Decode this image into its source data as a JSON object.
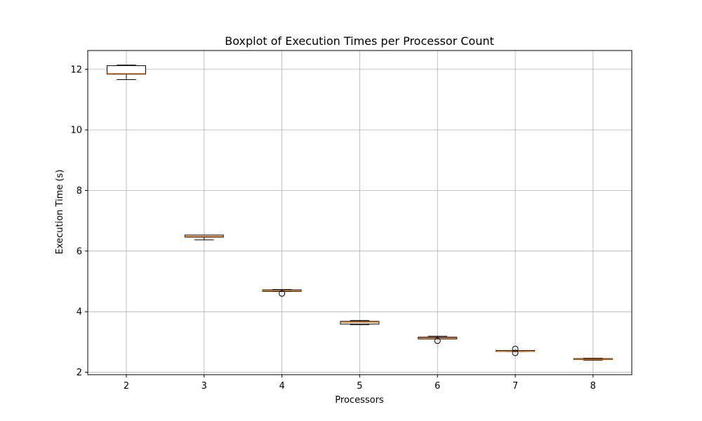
{
  "chart_data": {
    "type": "boxplot",
    "title": "Boxplot of Execution Times per Processor Count",
    "xlabel": "Processors",
    "ylabel": "Execution Time (s)",
    "categories": [
      "2",
      "3",
      "4",
      "5",
      "6",
      "7",
      "8"
    ],
    "y_ticks": [
      2,
      4,
      6,
      8,
      10,
      12
    ],
    "ylim": [
      1.92,
      12.62
    ],
    "grid": true,
    "boxes": [
      {
        "category": "2",
        "whisker_low": 11.66,
        "q1": 11.84,
        "median": 11.86,
        "q3": 12.12,
        "whisker_high": 12.14,
        "outliers": []
      },
      {
        "category": "3",
        "whisker_low": 6.37,
        "q1": 6.46,
        "median": 6.49,
        "q3": 6.53,
        "whisker_high": 6.53,
        "outliers": []
      },
      {
        "category": "4",
        "whisker_low": 4.67,
        "q1": 4.67,
        "median": 4.69,
        "q3": 4.72,
        "whisker_high": 4.73,
        "outliers": [
          4.6
        ]
      },
      {
        "category": "5",
        "whisker_low": 3.57,
        "q1": 3.59,
        "median": 3.65,
        "q3": 3.68,
        "whisker_high": 3.71,
        "outliers": []
      },
      {
        "category": "6",
        "whisker_low": 3.1,
        "q1": 3.1,
        "median": 3.13,
        "q3": 3.16,
        "whisker_high": 3.19,
        "outliers": [
          3.04
        ]
      },
      {
        "category": "7",
        "whisker_low": 2.69,
        "q1": 2.69,
        "median": 2.7,
        "q3": 2.72,
        "whisker_high": 2.72,
        "outliers": [
          2.64,
          2.77
        ]
      },
      {
        "category": "8",
        "whisker_low": 2.4,
        "q1": 2.42,
        "median": 2.43,
        "q3": 2.45,
        "whisker_high": 2.46,
        "outliers": []
      }
    ],
    "colors": {
      "box": "#000000",
      "median": "#ff7f0e",
      "grid": "#b0b0b0"
    }
  }
}
